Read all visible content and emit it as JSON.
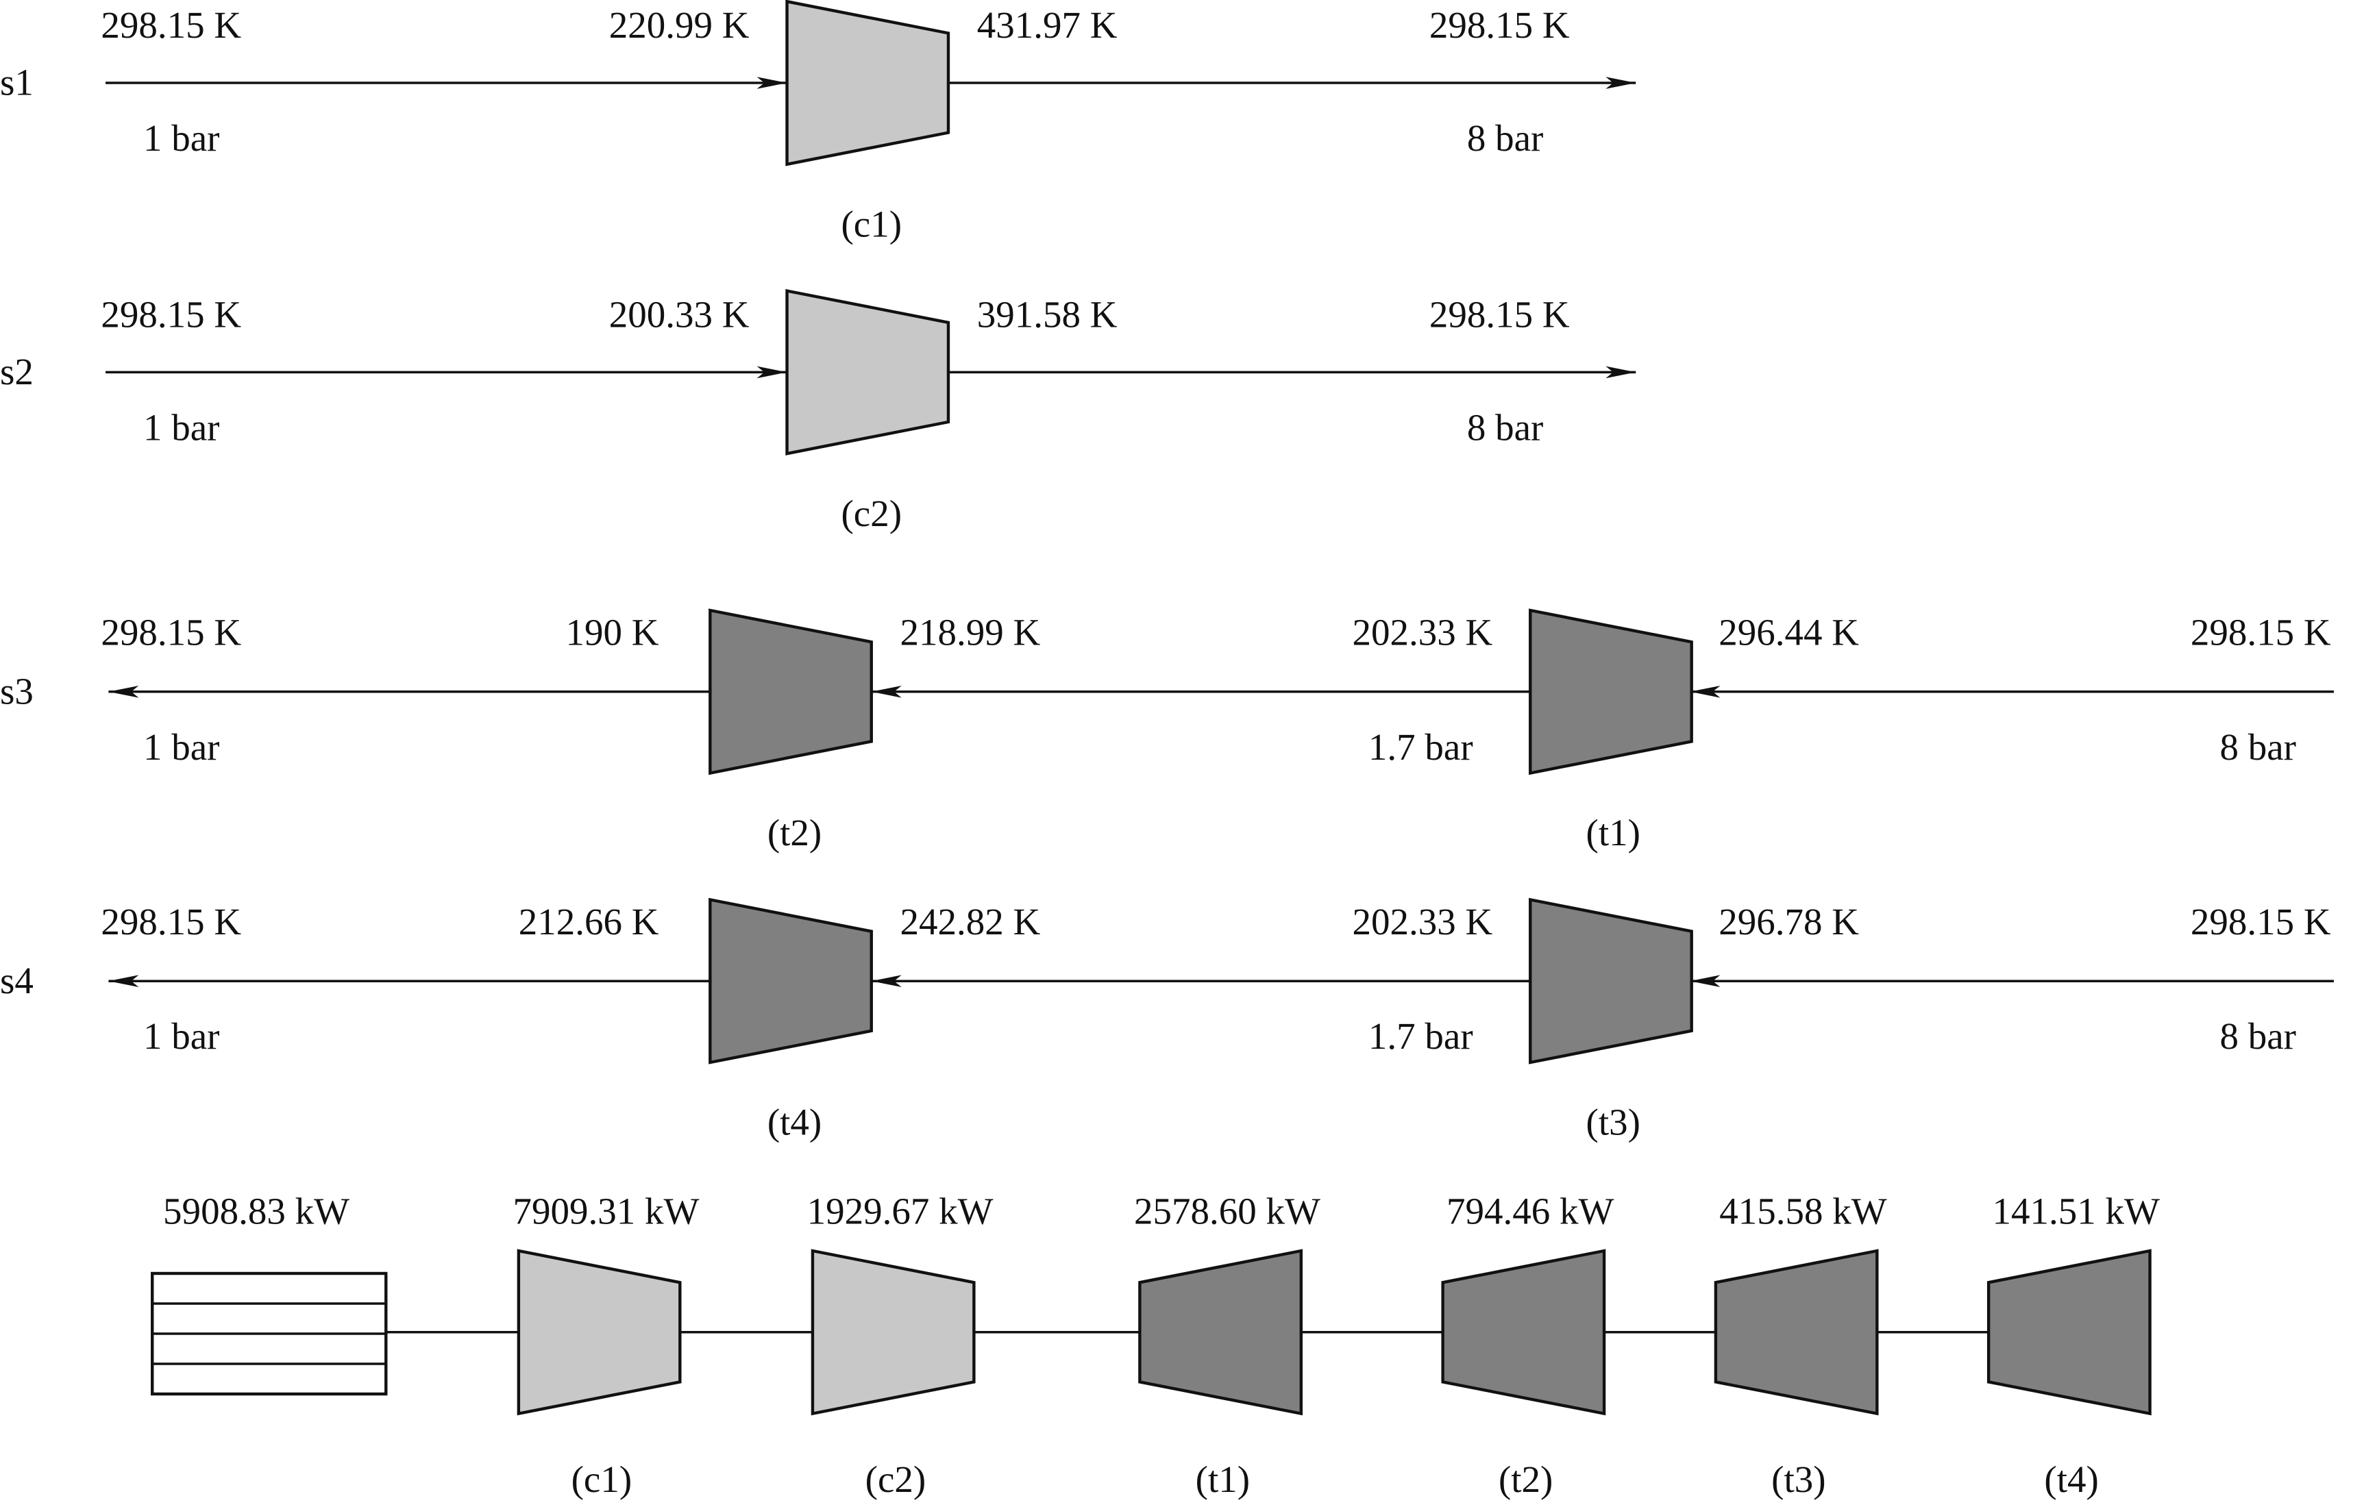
{
  "compression_streams": [
    {
      "name": "s1",
      "inlet_temperature": "298.15 K",
      "inlet_pressure": "1 bar",
      "compressor_inlet_temperature": "220.99 K",
      "compressor_outlet_temperature": "431.97 K",
      "outlet_temperature": "298.15 K",
      "outlet_pressure": "8 bar",
      "compressor": "(c1)"
    },
    {
      "name": "s2",
      "inlet_temperature": "298.15 K",
      "inlet_pressure": "1 bar",
      "compressor_inlet_temperature": "200.33 K",
      "compressor_outlet_temperature": "391.58 K",
      "outlet_temperature": "298.15 K",
      "outlet_pressure": "8 bar",
      "compressor": "(c2)"
    }
  ],
  "expansion_streams": [
    {
      "name": "s3",
      "inlet_temperature": "298.15 K",
      "inlet_pressure": "8 bar",
      "first_turbine_inlet_temperature": "296.44 K",
      "first_turbine_outlet_temperature": "202.33 K",
      "intermediate_pressure": "1.7 bar",
      "second_turbine_inlet_temperature": "218.99 K",
      "second_turbine_outlet_temperature": "190 K",
      "outlet_temperature": "298.15 K",
      "outlet_pressure": "1 bar",
      "first_turbine": "(t1)",
      "second_turbine": "(t2)"
    },
    {
      "name": "s4",
      "inlet_temperature": "298.15 K",
      "inlet_pressure": "8 bar",
      "first_turbine_inlet_temperature": "296.78 K",
      "first_turbine_outlet_temperature": "202.33 K",
      "intermediate_pressure": "1.7 bar",
      "second_turbine_inlet_temperature": "242.82 K",
      "second_turbine_outlet_temperature": "212.66 K",
      "outlet_temperature": "298.15 K",
      "outlet_pressure": "1 bar",
      "first_turbine": "(t3)",
      "second_turbine": "(t4)"
    }
  ],
  "shaft": {
    "generator_power": "5908.83 kW",
    "machines": [
      {
        "label": "(c1)",
        "power": "7909.31 kW"
      },
      {
        "label": "(c2)",
        "power": "1929.67 kW"
      },
      {
        "label": "(t1)",
        "power": "2578.60 kW"
      },
      {
        "label": "(t2)",
        "power": "794.46 kW"
      },
      {
        "label": "(t3)",
        "power": "415.58 kW"
      },
      {
        "label": "(t4)",
        "power": "141.51 kW"
      }
    ]
  }
}
